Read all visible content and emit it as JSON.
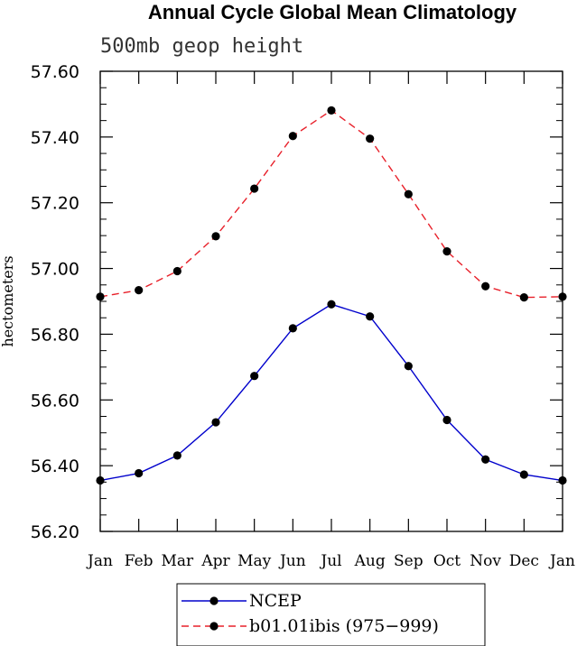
{
  "chart_data": {
    "type": "line",
    "title": "Annual Cycle Global Mean Climatology",
    "subtitle": "500mb geop height",
    "xlabel": "",
    "ylabel": "hectometers",
    "categories": [
      "Jan",
      "Feb",
      "Mar",
      "Apr",
      "May",
      "Jun",
      "Jul",
      "Aug",
      "Sep",
      "Oct",
      "Nov",
      "Dec",
      "Jan"
    ],
    "ylim": [
      56.2,
      57.6
    ],
    "yticks": [
      "56.20",
      "56.40",
      "56.60",
      "56.80",
      "57.00",
      "57.20",
      "57.40",
      "57.60"
    ],
    "grid": false,
    "legend_position": "bottom",
    "series": [
      {
        "name": "NCEP",
        "color": "#0000cc",
        "dash": "solid",
        "values": [
          56.355,
          56.377,
          56.431,
          56.532,
          56.673,
          56.818,
          56.891,
          56.854,
          56.703,
          56.539,
          56.419,
          56.373,
          56.355
        ]
      },
      {
        "name": "b01.01ibis (975−999)",
        "color": "#e8202a",
        "dash": "dashed",
        "values": [
          56.914,
          56.934,
          56.992,
          57.098,
          57.243,
          57.403,
          57.481,
          57.395,
          57.226,
          57.052,
          56.946,
          56.912,
          56.914
        ]
      }
    ]
  }
}
